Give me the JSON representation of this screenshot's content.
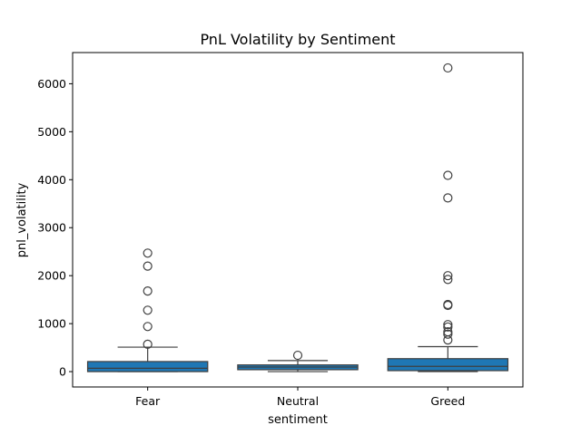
{
  "chart_data": {
    "type": "box",
    "title": "PnL Volatility by Sentiment",
    "xlabel": "sentiment",
    "ylabel": "pnl_volatility",
    "categories": [
      "Fear",
      "Neutral",
      "Greed"
    ],
    "ylim": [
      -320,
      6650
    ],
    "yticks": [
      0,
      1000,
      2000,
      3000,
      4000,
      5000,
      6000
    ],
    "box_color": "#1f77b4",
    "boxes": [
      {
        "category": "Fear",
        "whisker_low": 0,
        "q1": 0,
        "median": 70,
        "q3": 210,
        "whisker_high": 510,
        "outliers": [
          570,
          940,
          1280,
          1680,
          2200,
          2470
        ]
      },
      {
        "category": "Neutral",
        "whisker_low": 0,
        "q1": 40,
        "median": 95,
        "q3": 140,
        "whisker_high": 230,
        "outliers": [
          340
        ]
      },
      {
        "category": "Greed",
        "whisker_low": 0,
        "q1": 20,
        "median": 110,
        "q3": 270,
        "whisker_high": 520,
        "outliers": [
          660,
          780,
          830,
          930,
          980,
          1380,
          1400,
          1920,
          2000,
          3620,
          4090,
          6330
        ]
      }
    ],
    "grid": false,
    "legend": "none"
  }
}
